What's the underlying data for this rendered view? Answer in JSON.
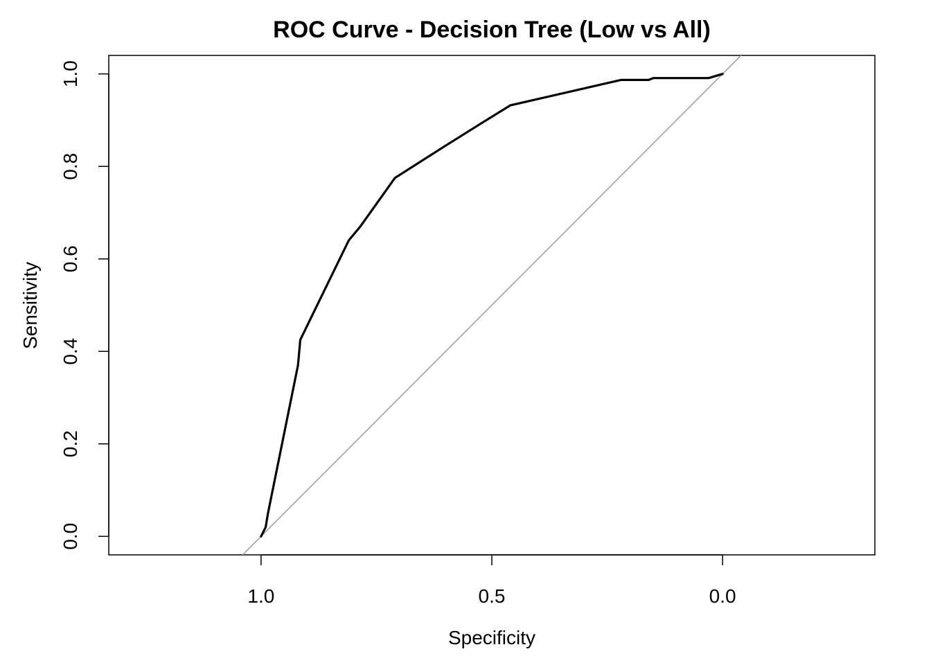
{
  "chart_data": {
    "type": "line",
    "title": "ROC Curve - Decision Tree (Low vs All)",
    "xlabel": "Specificity",
    "ylabel": "Sensitivity",
    "x_reversed": true,
    "xlim": [
      1.33,
      -0.33
    ],
    "ylim": [
      -0.04,
      1.04
    ],
    "x_ticks": [
      1.0,
      0.5,
      0.0
    ],
    "x_tick_labels": [
      "1.0",
      "0.5",
      "0.0"
    ],
    "y_ticks": [
      0.0,
      0.2,
      0.4,
      0.6,
      0.8,
      1.0
    ],
    "y_tick_labels": [
      "0.0",
      "0.2",
      "0.4",
      "0.6",
      "0.8",
      "1.0"
    ],
    "grid": false,
    "series": [
      {
        "color": "#000000",
        "points": [
          {
            "specificity": 1.0,
            "sensitivity": 0.0
          },
          {
            "specificity": 0.99,
            "sensitivity": 0.02
          },
          {
            "specificity": 0.985,
            "sensitivity": 0.05
          },
          {
            "specificity": 0.92,
            "sensitivity": 0.37
          },
          {
            "specificity": 0.915,
            "sensitivity": 0.425
          },
          {
            "specificity": 0.81,
            "sensitivity": 0.64
          },
          {
            "specificity": 0.785,
            "sensitivity": 0.67
          },
          {
            "specificity": 0.71,
            "sensitivity": 0.775
          },
          {
            "specificity": 0.6,
            "sensitivity": 0.845
          },
          {
            "specificity": 0.52,
            "sensitivity": 0.895
          },
          {
            "specificity": 0.46,
            "sensitivity": 0.932
          },
          {
            "specificity": 0.22,
            "sensitivity": 0.987
          },
          {
            "specificity": 0.16,
            "sensitivity": 0.987
          },
          {
            "specificity": 0.15,
            "sensitivity": 0.991
          },
          {
            "specificity": 0.03,
            "sensitivity": 0.991
          },
          {
            "specificity": 0.0,
            "sensitivity": 1.0
          }
        ]
      }
    ],
    "reference_line": {
      "color": "#a0a0a0",
      "from": {
        "specificity": 1.0,
        "sensitivity": 0.0
      },
      "to": {
        "specificity": 0.0,
        "sensitivity": 1.0
      }
    }
  }
}
